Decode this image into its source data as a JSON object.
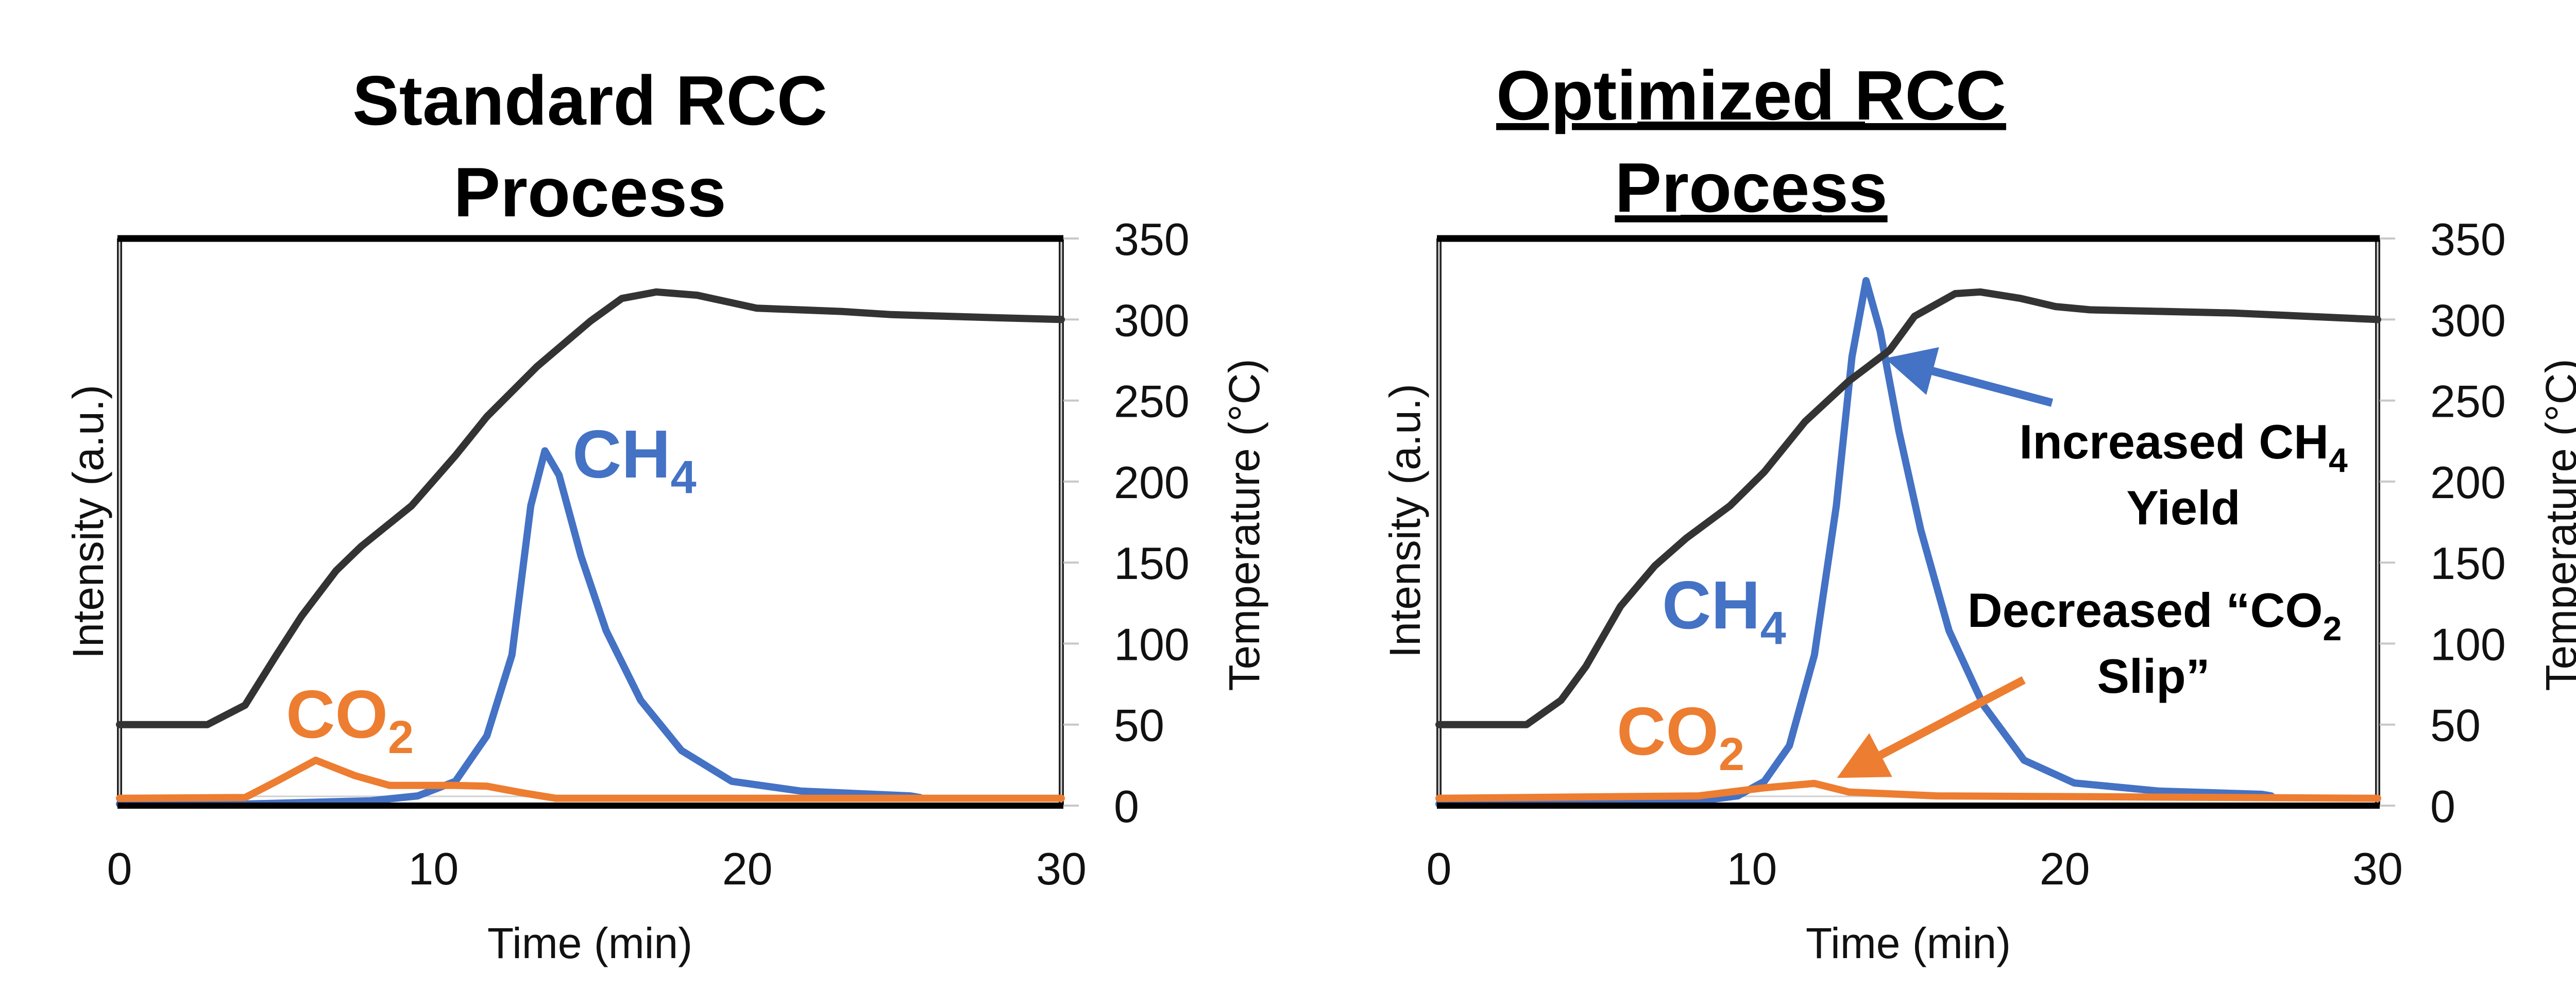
{
  "colors": {
    "temperature": "#333333",
    "ch4": "#4472C4",
    "co2": "#ED7D31",
    "axis": "#000000",
    "tick": "#bfbfbf"
  },
  "chart_data": [
    {
      "type": "line",
      "title_lines": [
        "Standard RCC",
        "Process"
      ],
      "title_underlined": false,
      "xlabel": "Time (min)",
      "ylabel_left": "Intensity (a.u.)",
      "ylabel_right": "Temperature (°C)",
      "xlim": [
        0,
        30
      ],
      "x_ticks": [
        "0",
        "10",
        "20",
        "30"
      ],
      "ylim_right": [
        0,
        350
      ],
      "y_ticks_right": [
        "0",
        "50",
        "100",
        "150",
        "200",
        "250",
        "300",
        "350"
      ],
      "grid": false,
      "legend": "none",
      "series_labels": [
        {
          "series": "CH4",
          "text": "CH",
          "sub": "4"
        },
        {
          "series": "CO2",
          "text": "CO",
          "sub": "2"
        }
      ],
      "series": [
        {
          "name": "Temperature",
          "axis": "right",
          "x": [
            0,
            2.8,
            4.0,
            5.0,
            5.8,
            6.9,
            7.7,
            9.3,
            10.7,
            11.7,
            13.3,
            15.0,
            16.0,
            17.1,
            18.4,
            20.3,
            23.0,
            24.6,
            28.1,
            30
          ],
          "values": [
            50,
            50,
            62,
            93,
            117,
            145,
            160,
            185,
            216,
            240,
            271,
            299,
            313,
            317,
            315,
            307,
            305,
            303,
            301,
            300
          ]
        },
        {
          "name": "CH4",
          "axis": "left",
          "x": [
            0,
            4,
            8,
            9.5,
            10.7,
            11.7,
            12.5,
            13.1,
            13.55,
            14.0,
            14.7,
            15.5,
            16.6,
            17.9,
            19.5,
            21.7,
            25.2,
            25.5
          ],
          "values": [
            1,
            1,
            3,
            6,
            15,
            43,
            93,
            185,
            219,
            204,
            154,
            108,
            65,
            34,
            15,
            9,
            6,
            5
          ]
        },
        {
          "name": "CO2",
          "axis": "left",
          "x": [
            0,
            4.0,
            5.0,
            6.25,
            7.5,
            8.6,
            10.7,
            11.7,
            12.8,
            13.9,
            30
          ],
          "values": [
            4.5,
            5,
            15,
            28,
            18.5,
            12.5,
            12.5,
            12,
            8,
            4.5,
            4.5
          ]
        }
      ],
      "annotations": []
    },
    {
      "type": "line",
      "title_lines": [
        "Optimized RCC",
        "Process"
      ],
      "title_underlined": true,
      "xlabel": "Time (min)",
      "ylabel_left": "Intensity (a.u.)",
      "ylabel_right": "Temperature (°C)",
      "xlim": [
        0,
        30
      ],
      "x_ticks": [
        "0",
        "10",
        "20",
        "30"
      ],
      "ylim_right": [
        0,
        350
      ],
      "y_ticks_right": [
        "0",
        "50",
        "100",
        "150",
        "200",
        "250",
        "300",
        "350"
      ],
      "grid": false,
      "legend": "none",
      "series_labels": [
        {
          "series": "CH4",
          "text": "CH",
          "sub": "4"
        },
        {
          "series": "CO2",
          "text": "CO",
          "sub": "2"
        }
      ],
      "series": [
        {
          "name": "Temperature",
          "axis": "right",
          "x": [
            0,
            2.8,
            3.9,
            4.7,
            5.8,
            6.9,
            7.9,
            9.3,
            10.4,
            11.7,
            13.1,
            14.4,
            15.2,
            16.5,
            17.3,
            18.6,
            19.7,
            20.8,
            25.4,
            30
          ],
          "values": [
            50,
            50,
            65,
            86,
            123,
            148,
            165,
            185,
            206,
            237,
            262,
            281,
            302,
            316,
            317,
            313,
            308,
            306,
            304,
            300
          ]
        },
        {
          "name": "CH4",
          "axis": "left",
          "x": [
            0,
            4,
            8,
            9.55,
            10.4,
            11.2,
            12.0,
            12.7,
            13.2,
            13.65,
            14.1,
            14.7,
            15.4,
            16.3,
            17.4,
            18.7,
            20.3,
            23.0,
            26.3,
            26.6
          ],
          "values": [
            1,
            1,
            2,
            6,
            15,
            37,
            93,
            185,
            277,
            324,
            293,
            231,
            170,
            108,
            62,
            28,
            14,
            9,
            7,
            6
          ]
        },
        {
          "name": "CO2",
          "axis": "left",
          "x": [
            0,
            8.3,
            10.4,
            12.0,
            13.1,
            15.9,
            30
          ],
          "values": [
            4.5,
            6,
            11,
            13.7,
            8.4,
            6,
            4.5
          ]
        }
      ],
      "annotations": [
        {
          "id": "ch4",
          "color": "#4472C4",
          "line1": "Increased CH",
          "line1_sub": "4",
          "line2": "Yield",
          "arrow_to": {
            "x": 14.6,
            "y": 275
          }
        },
        {
          "id": "co2",
          "color": "#ED7D31",
          "line1": "Decreased “CO",
          "line1_sub": "2",
          "line2": "Slip”",
          "arrow_to": {
            "x": 13.0,
            "y": 20
          }
        }
      ]
    }
  ]
}
